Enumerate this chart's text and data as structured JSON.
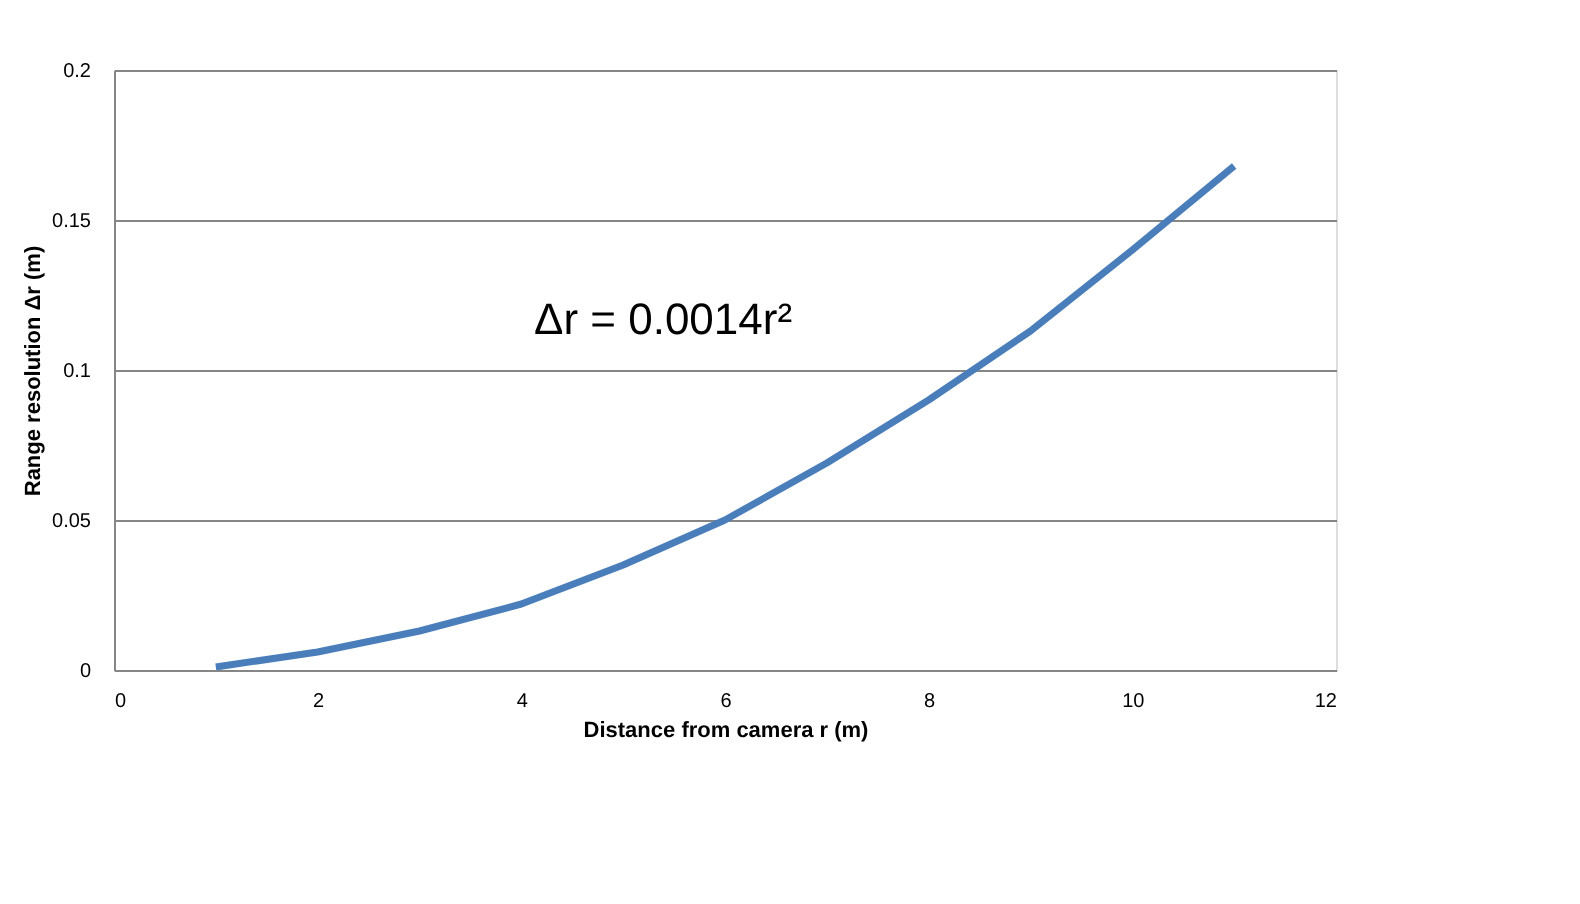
{
  "chart_data": {
    "type": "line",
    "xlabel": "Distance from camera r (m)",
    "ylabel": "Range resolution Δr (m)",
    "x": [
      1,
      2,
      3,
      4,
      5,
      6,
      7,
      8,
      9,
      10,
      11
    ],
    "series": [
      {
        "color": "#4a7ebb",
        "values": [
          0.001,
          0.006,
          0.013,
          0.022,
          0.035,
          0.05,
          0.069,
          0.09,
          0.113,
          0.14,
          0.168
        ]
      }
    ],
    "xlim": [
      0,
      12
    ],
    "xticks": [
      0,
      2,
      4,
      6,
      8,
      10,
      12
    ],
    "ylim": [
      0,
      0.2
    ],
    "yticks": [
      0,
      0.05,
      0.1,
      0.15,
      0.2
    ],
    "grid": "y",
    "marker": "none",
    "line_style": "solid",
    "annotations": [
      "Δr = 0.0014r²"
    ]
  }
}
